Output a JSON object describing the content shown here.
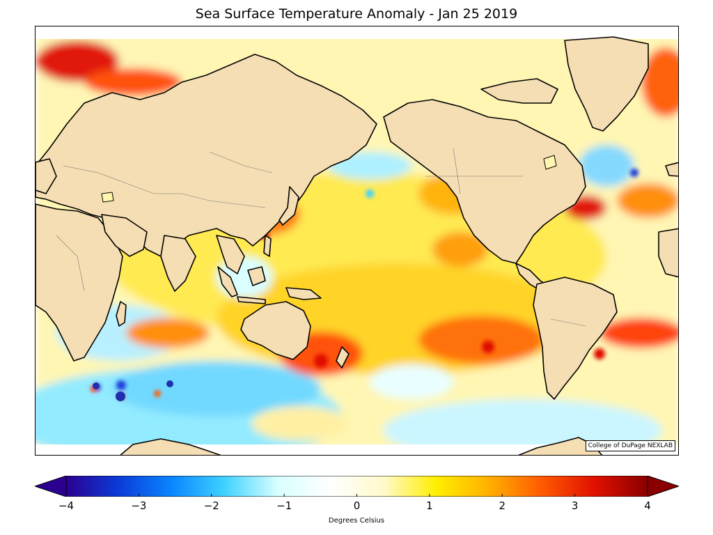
{
  "title": "Sea Surface Temperature Anomaly - Jan 25 2019",
  "credit": "College of DuPage NEXLAB",
  "colorbar": {
    "label": "Degrees Celsius",
    "min": -4,
    "max": 4,
    "ticks": [
      "−4",
      "−3",
      "−2",
      "−1",
      "0",
      "1",
      "2",
      "3",
      "4"
    ],
    "colors": [
      "#2b0090",
      "#0a3cd8",
      "#0a86ff",
      "#3fd2ff",
      "#d8ffff",
      "#ffffff",
      "#fffacc",
      "#ffee00",
      "#ffb000",
      "#ff5a00",
      "#e01000",
      "#8a0000"
    ]
  },
  "palette": {
    "land": "#f5deb3",
    "coastline": "#000000",
    "ocean_neutral": "#ffffff"
  }
}
